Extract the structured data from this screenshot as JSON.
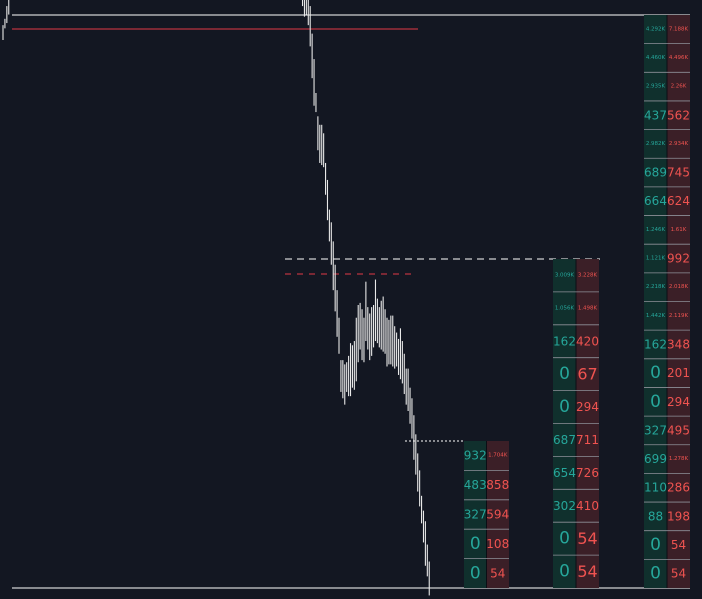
{
  "chart_data": {
    "type": "line",
    "series_style": "vertical price bars (high-low), white",
    "price_bars": [
      [
        0,
        0.7
      ],
      [
        1,
        0.55
      ],
      [
        0.8,
        1.6
      ],
      [
        1.2,
        3
      ],
      [
        2.5,
        3.4
      ],
      [
        3,
        5.3
      ],
      [
        4.4,
        5.6
      ],
      [
        4.2,
        7.6
      ],
      [
        5.8,
        10.4
      ],
      [
        7.3,
        11
      ],
      [
        8.4,
        10.9
      ],
      [
        10.9,
        12.7
      ],
      [
        11.4,
        13.3
      ],
      [
        12.3,
        12.7
      ],
      [
        12.6,
        12.7
      ],
      [
        13.3,
        15.6
      ],
      [
        13.8,
        14.8
      ],
      [
        13.5,
        15.7
      ],
      [
        14.2,
        16.1
      ],
      [
        14.1,
        15.6
      ],
      [
        15.9,
        18.1
      ],
      [
        17.3,
        20.4
      ],
      [
        16.5,
        19.7
      ],
      [
        18.2,
        19.9
      ],
      [
        18.3,
        21.2
      ],
      [
        17.9,
        21.1
      ],
      [
        20.2,
        22.2
      ],
      [
        21.4,
        25.2
      ],
      [
        20.8,
        23.9
      ],
      [
        20.3,
        23.3
      ],
      [
        19.5,
        22.7
      ],
      [
        19.1,
        22.8
      ],
      [
        18.6,
        22
      ],
      [
        17.5,
        20.4
      ],
      [
        16.2,
        19.3
      ],
      [
        13.7,
        16
      ],
      [
        13.7,
        15.4
      ],
      [
        13.3,
        15.8
      ],
      [
        13.8,
        16.5
      ],
      [
        11.5,
        13.9
      ],
      [
        10.5,
        14.5
      ],
      [
        12.3,
        15.7
      ],
      [
        12.8,
        15.8
      ],
      [
        13.5,
        16
      ],
      [
        14.6,
        17.2
      ],
      [
        14.1,
        18
      ],
      [
        15.3,
        18.5
      ],
      [
        16.8,
        19.3
      ],
      [
        16.7,
        19.4
      ],
      [
        14.4,
        18.9
      ],
      [
        14.6,
        17.8
      ],
      [
        14.7,
        17.4
      ],
      [
        15.1,
        18.2
      ],
      [
        15.1,
        17.4
      ],
      [
        14.9,
        16.8
      ],
      [
        13.7,
        17.2
      ],
      [
        12.1,
        16.1
      ],
      [
        11.6,
        15.7
      ],
      [
        11.3,
        13.5
      ],
      [
        12.1,
        14.8
      ],
      [
        12.9,
        15.6
      ],
      [
        13.2,
        15.7
      ],
      [
        12.3,
        15.6
      ],
      [
        12.9,
        15.5
      ],
      [
        13.9,
        16.6
      ],
      [
        14.9,
        18.3
      ],
      [
        13.6,
        17.5
      ],
      [
        12.7,
        15.4
      ],
      [
        12.4,
        16.3
      ],
      [
        12.1,
        13.9
      ],
      [
        10.9,
        14.7
      ],
      [
        10.3,
        14.3
      ],
      [
        11.4,
        14
      ],
      [
        12.2,
        14.5
      ],
      [
        11.4,
        14.7
      ],
      [
        12.2,
        14.6
      ],
      [
        13.2,
        15.2
      ],
      [
        12.9,
        16.8
      ],
      [
        13.8,
        16.2
      ],
      [
        15.7,
        18
      ],
      [
        15.6,
        18.6
      ],
      [
        16.1,
        18.6
      ],
      [
        16.7,
        18.1
      ],
      [
        16.1,
        18.1
      ],
      [
        15.2,
        17.9
      ],
      [
        14.1,
        16.5
      ],
      [
        13.2,
        15.7
      ],
      [
        13.8,
        16.2
      ],
      [
        12.1,
        14.6
      ],
      [
        13.5,
        15.4
      ],
      [
        13.8,
        15.5
      ],
      [
        13.2,
        15.4
      ],
      [
        12.5,
        16
      ],
      [
        13.6,
        16.1
      ],
      [
        14.1,
        15.9
      ],
      [
        13.4,
        16.3
      ],
      [
        13.8,
        16.2
      ],
      [
        14.4,
        16.3
      ],
      [
        14.6,
        16.8
      ],
      [
        12.8,
        15.6
      ],
      [
        12,
        16.3
      ],
      [
        12.1,
        14.9
      ],
      [
        11.6,
        14.3
      ],
      [
        10.8,
        13.7
      ],
      [
        10.1,
        13.9
      ],
      [
        11.4,
        13.2
      ],
      [
        11.8,
        13.2
      ],
      [
        11.3,
        13
      ],
      [
        10.6,
        13.1
      ],
      [
        9.9,
        12.3
      ],
      [
        9.4,
        12.6
      ],
      [
        9.1,
        12.4
      ],
      [
        7.8,
        10.7
      ],
      [
        8.7,
        10.5
      ],
      [
        7.7,
        10.4
      ],
      [
        7.6,
        9.9
      ],
      [
        7.2,
        9.4
      ],
      [
        6.9,
        9.1
      ],
      [
        6.3,
        8.5
      ],
      [
        6.3,
        9
      ],
      [
        6.1,
        8.9
      ],
      [
        6.6,
        9.1
      ],
      [
        6.8,
        9.2
      ],
      [
        7.2,
        9.5
      ],
      [
        6.8,
        9.4
      ],
      [
        6.6,
        9.5
      ],
      [
        6.9,
        9.6
      ],
      [
        7.5,
        9.9
      ],
      [
        7.8,
        10
      ],
      [
        6.9,
        10.7
      ],
      [
        8.6,
        11.2
      ],
      [
        8.9,
        11.4
      ],
      [
        8.1,
        11.6
      ],
      [
        8.6,
        10.6
      ],
      [
        8.6,
        10.4
      ],
      [
        8.6,
        9.8
      ],
      [
        7.7,
        10.2
      ],
      [
        6.7,
        9.9
      ],
      [
        6.7,
        9.8
      ],
      [
        7,
        9.9
      ],
      [
        6.8,
        10.6
      ],
      [
        7.3,
        10.3
      ],
      [
        6.7,
        9.3
      ],
      [
        6.1,
        8
      ],
      [
        5.8,
        7.7
      ],
      [
        6.2,
        7.8
      ],
      [
        6.3,
        8
      ],
      [
        5.5,
        7.7
      ],
      [
        5.6,
        7.8
      ],
      [
        5,
        7.4
      ],
      [
        4.7,
        7.7
      ],
      [
        4.9,
        7.4
      ],
      [
        4.1,
        6.6
      ],
      [
        3.2,
        4.8
      ],
      [
        3.5,
        5.3
      ],
      [
        2.9,
        5
      ],
      [
        1.6,
        3.6
      ],
      [
        1.1,
        2.9
      ],
      [
        1.2,
        2.9
      ],
      [
        0.7,
        2.4
      ],
      [
        -0.3,
        1.6
      ],
      [
        -1.8,
        0.3
      ],
      [
        -3.1,
        -0.9
      ],
      [
        -3.4,
        -2.5
      ],
      [
        -5.2,
        -3.6
      ],
      [
        -5.8,
        -4
      ],
      [
        -5.9,
        -4
      ],
      [
        -6,
        -4.4
      ],
      [
        -7.3,
        -5.8
      ],
      [
        -8.5,
        -6.6
      ],
      [
        -9.5,
        -8
      ],
      [
        -10.6,
        -8.6
      ],
      [
        -11.8,
        -9.5
      ],
      [
        -12.8,
        -10.6
      ],
      [
        -14,
        -11.8
      ],
      [
        -14.8,
        -13.1
      ],
      [
        -16.6,
        -15.1
      ],
      [
        -16.9,
        -15.1
      ],
      [
        -17.2,
        -15.3
      ],
      [
        -16.6,
        -15.2
      ],
      [
        -16.8,
        -14.9
      ],
      [
        -16.8,
        -14.3
      ],
      [
        -16.4,
        -14.4
      ],
      [
        -16.5,
        -14.2
      ],
      [
        -16.1,
        -13.1
      ],
      [
        -15.2,
        -12.5
      ],
      [
        -14.6,
        -12.4
      ],
      [
        -15.1,
        -12.7
      ],
      [
        -15.2,
        -13.1
      ],
      [
        -14.2,
        -11.4
      ],
      [
        -14.6,
        -12.6
      ],
      [
        -15.1,
        -12.9
      ],
      [
        -14.9,
        -12.6
      ],
      [
        -14.5,
        -12.5
      ],
      [
        -14.2,
        -11.3
      ],
      [
        -14.3,
        -12.2
      ],
      [
        -14.5,
        -12.6
      ],
      [
        -14.6,
        -12.3
      ],
      [
        -14.7,
        -12.1
      ],
      [
        -14.8,
        -12.7
      ],
      [
        -15.4,
        -13.1
      ],
      [
        -15.3,
        -13.2
      ],
      [
        -15.3,
        -13
      ],
      [
        -15.4,
        -13
      ],
      [
        -15.5,
        -13.5
      ],
      [
        -15.4,
        -13.8
      ],
      [
        -15.8,
        -14.1
      ],
      [
        -16,
        -13.6
      ],
      [
        -16.2,
        -14.2
      ],
      [
        -16.7,
        -14.8
      ],
      [
        -17.2,
        -15.5
      ],
      [
        -17.5,
        -15.5
      ],
      [
        -18.1,
        -16.4
      ],
      [
        -18.8,
        -16.9
      ],
      [
        -19.8,
        -17.7
      ],
      [
        -20.5,
        -18.6
      ],
      [
        -21.3,
        -19.5
      ],
      [
        -22,
        -20.3
      ],
      [
        -22.8,
        -21.5
      ],
      [
        -23.7,
        -22.2
      ],
      [
        -24.8,
        -22.7
      ],
      [
        -25.3,
        -23.8
      ],
      [
        -26.2,
        -24.6
      ]
    ],
    "levels": [
      {
        "style": "solid",
        "color": "#e03a45"
      },
      {
        "style": "dashed",
        "color": "#ffffff"
      },
      {
        "style": "dashed",
        "color": "#e03a45"
      },
      {
        "style": "dotted",
        "color": "#ffffff"
      },
      {
        "style": "solid",
        "color": "#ffffff"
      }
    ],
    "footprints": [
      {
        "rows": [
          {
            "bid": "932",
            "ask": "1.704K"
          },
          {
            "bid": "483",
            "ask": "858"
          },
          {
            "bid": "327",
            "ask": "594"
          },
          {
            "bid": "0",
            "ask": "108"
          },
          {
            "bid": "0",
            "ask": "54"
          }
        ]
      },
      {
        "rows": [
          {
            "bid": "3.009K",
            "ask": "3.228K"
          },
          {
            "bid": "1.056K",
            "ask": "1.498K"
          },
          {
            "bid": "162",
            "ask": "420"
          },
          {
            "bid": "0",
            "ask": "67"
          },
          {
            "bid": "0",
            "ask": "294"
          },
          {
            "bid": "687",
            "ask": "711"
          },
          {
            "bid": "654",
            "ask": "726"
          },
          {
            "bid": "302",
            "ask": "410"
          },
          {
            "bid": "0",
            "ask": "54"
          },
          {
            "bid": "0",
            "ask": "54"
          }
        ]
      },
      {
        "rows": [
          {
            "bid": "4.292K",
            "ask": "7.188K"
          },
          {
            "bid": "4.460K",
            "ask": "4.496K"
          },
          {
            "bid": "2.935K",
            "ask": "2.26K"
          },
          {
            "bid": "437",
            "ask": "562"
          },
          {
            "bid": "2.982K",
            "ask": "2.934K"
          },
          {
            "bid": "689",
            "ask": "745"
          },
          {
            "bid": "664",
            "ask": "624"
          },
          {
            "bid": "1.246K",
            "ask": "1.61K"
          },
          {
            "bid": "1.121K",
            "ask": "992"
          },
          {
            "bid": "2.218K",
            "ask": "2.018K"
          },
          {
            "bid": "1.442K",
            "ask": "2.119K"
          },
          {
            "bid": "162",
            "ask": "348"
          },
          {
            "bid": "0",
            "ask": "201"
          },
          {
            "bid": "0",
            "ask": "294"
          },
          {
            "bid": "327",
            "ask": "495"
          },
          {
            "bid": "699",
            "ask": "1.278K"
          },
          {
            "bid": "110",
            "ask": "286"
          },
          {
            "bid": "88",
            "ask": "198"
          },
          {
            "bid": "0",
            "ask": "54"
          },
          {
            "bid": "0",
            "ask": "54"
          }
        ]
      }
    ],
    "colors": {
      "background": "#131722",
      "price": "#e8e8e8",
      "bid_text": "#26a69a",
      "ask_text": "#ef5350",
      "bid_cell": "#10302d",
      "ask_cell": "#3b1f27",
      "row_separator": "#8e9099"
    }
  }
}
